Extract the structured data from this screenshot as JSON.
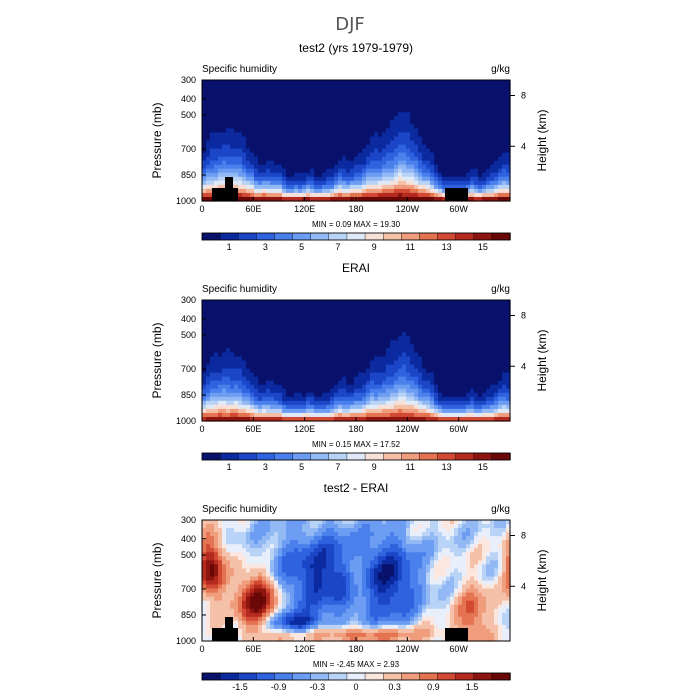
{
  "figure": {
    "title": "DJF"
  },
  "chart_data": [
    {
      "type": "heatmap",
      "title": "test2 (yrs 1979-1979)",
      "left_label": "Specific humidity",
      "units": "g/kg",
      "xlabel": "",
      "ylabel": "Pressure (mb)",
      "ylabel_right": "Height (km)",
      "xticks": [
        "0",
        "60E",
        "120E",
        "180",
        "120W",
        "60W"
      ],
      "yticks": [
        "300",
        "400",
        "500",
        "700",
        "850",
        "1000"
      ],
      "yticks_right": [
        "8",
        "4"
      ],
      "stats": "MIN =    0.09   MAX =   19.30",
      "colorbar_labels": [
        "1",
        "3",
        "5",
        "7",
        "9",
        "11",
        "13",
        "15"
      ],
      "field": "full",
      "peak_humidity": 19.3
    },
    {
      "type": "heatmap",
      "title": "ERAI",
      "left_label": "Specific humidity",
      "units": "g/kg",
      "xlabel": "",
      "ylabel": "Pressure (mb)",
      "ylabel_right": "Height (km)",
      "xticks": [
        "0",
        "60E",
        "120E",
        "180",
        "120W",
        "60W"
      ],
      "yticks": [
        "300",
        "400",
        "500",
        "700",
        "850",
        "1000"
      ],
      "yticks_right": [
        "8",
        "4"
      ],
      "stats": "MIN =    0.15   MAX =   17.52",
      "colorbar_labels": [
        "1",
        "3",
        "5",
        "7",
        "9",
        "11",
        "13",
        "15"
      ],
      "field": "full",
      "peak_humidity": 17.52
    },
    {
      "type": "heatmap",
      "title": "test2 - ERAI",
      "left_label": "Specific humidity",
      "units": "g/kg",
      "xlabel": "",
      "ylabel": "Pressure (mb)",
      "ylabel_right": "Height (km)",
      "xticks": [
        "0",
        "60E",
        "120E",
        "180",
        "120W",
        "60W"
      ],
      "yticks": [
        "300",
        "400",
        "500",
        "700",
        "850",
        "1000"
      ],
      "yticks_right": [
        "8",
        "4"
      ],
      "stats": "MIN =   -2.45   MAX =    2.93",
      "colorbar_labels": [
        "-1.5",
        "-0.9",
        "-0.3",
        "0",
        "0.3",
        "0.9",
        "1.5"
      ],
      "field": "diff"
    }
  ],
  "colors": {
    "full_scale": [
      "#08116b",
      "#0b2aa0",
      "#1c46c8",
      "#2e62de",
      "#4a80ec",
      "#6d9df2",
      "#93b9f5",
      "#b9d3f6",
      "#dfe9f7",
      "#f7e0d8",
      "#f5c0a8",
      "#f09d7d",
      "#e47352",
      "#d24a33",
      "#b42a1e",
      "#8e1410",
      "#6a0808"
    ],
    "diff_scale": [
      "#08116b",
      "#0b2aa0",
      "#1c46c8",
      "#2e62de",
      "#4a80ec",
      "#6d9df2",
      "#93b9f5",
      "#b9d3f6",
      "#e8eefa",
      "#fbe7df",
      "#f5c0a8",
      "#f09d7d",
      "#e47352",
      "#d24a33",
      "#b42a1e",
      "#8e1410",
      "#6a0808"
    ],
    "topography": "#000000"
  }
}
